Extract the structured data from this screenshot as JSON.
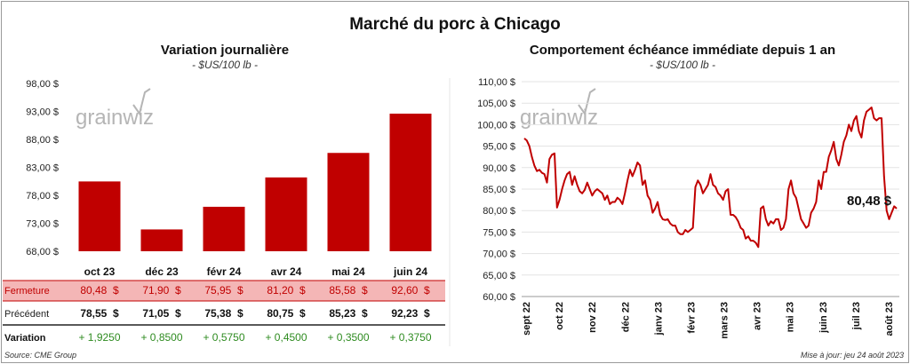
{
  "title": "Marché du porc à Chicago",
  "source": "Source: CME Group",
  "updated": "Mise à jour: jeu 24 août 2023",
  "watermark": "grainwiz",
  "colors": {
    "bar": "#c00000",
    "line": "#c00000",
    "fermeture_row": "#f4b6b6",
    "positive": "#2e8b20"
  },
  "chart_data": [
    {
      "type": "bar",
      "title": "Variation journalière",
      "unit": "- $US/100 lb -",
      "categories": [
        "oct 23",
        "déc 23",
        "févr 24",
        "avr 24",
        "mai 24",
        "juin 24"
      ],
      "values": [
        80.48,
        71.9,
        75.95,
        81.2,
        85.58,
        92.6
      ],
      "ylim": [
        68,
        98
      ],
      "yticks": [
        "98,00 $",
        "93,00 $",
        "88,00 $",
        "83,00 $",
        "78,00 $",
        "73,00 $",
        "68,00 $"
      ],
      "table": {
        "rows": [
          {
            "label": "Fermeture",
            "cells": [
              "80,48  $",
              "71,90  $",
              "75,95  $",
              "81,20  $",
              "85,58  $",
              "92,60  $"
            ]
          },
          {
            "label": "Précédent",
            "cells": [
              "78,55  $",
              "71,05  $",
              "75,38  $",
              "80,75  $",
              "85,23  $",
              "92,23  $"
            ]
          },
          {
            "label": "Variation",
            "cells": [
              "+ 1,9250",
              "+ 0,8500",
              "+ 0,5750",
              "+ 0,4500",
              "+ 0,3500",
              "+ 0,3750"
            ]
          }
        ]
      }
    },
    {
      "type": "line",
      "title": "Comportement  échéance immédiate depuis 1 an",
      "unit": "- $US/100 lb -",
      "ylim": [
        60,
        110
      ],
      "yticks": [
        "110,00 $",
        "105,00 $",
        "100,00 $",
        "95,00 $",
        "90,00 $",
        "85,00 $",
        "80,00 $",
        "75,00 $",
        "70,00 $",
        "65,00 $",
        "60,00 $"
      ],
      "xlabels": [
        "sept 22",
        "oct 22",
        "nov 22",
        "déc 22",
        "janv 23",
        "févr 23",
        "mars 23",
        "avr 23",
        "mai 23",
        "juin 23",
        "juil 23",
        "août 23"
      ],
      "last_label": "80,48 $",
      "values": [
        96.8,
        96.3,
        95.0,
        92.5,
        90.5,
        89.2,
        89.5,
        88.8,
        88.5,
        86.5,
        92.0,
        93.0,
        93.3,
        80.7,
        82.5,
        85.0,
        87.0,
        88.5,
        89.0,
        86.0,
        88.0,
        86.0,
        84.5,
        84.0,
        84.8,
        86.5,
        85.0,
        83.5,
        84.5,
        85.0,
        84.5,
        84.0,
        82.5,
        83.5,
        81.5,
        82.0,
        82.0,
        83.0,
        82.5,
        81.5,
        84.0,
        87.0,
        89.5,
        88.0,
        89.5,
        91.2,
        90.5,
        86.0,
        87.0,
        83.5,
        82.5,
        79.5,
        80.5,
        82.0,
        79.0,
        78.0,
        77.8,
        78.0,
        77.0,
        76.5,
        76.5,
        75.0,
        74.5,
        74.5,
        75.5,
        75.0,
        75.5,
        76.0,
        85.5,
        87.0,
        86.0,
        84.0,
        85.0,
        86.0,
        88.5,
        86.0,
        85.5,
        84.0,
        83.5,
        82.5,
        84.5,
        85.0,
        79.0,
        79.0,
        78.5,
        77.5,
        76.0,
        75.5,
        73.5,
        74.0,
        73.0,
        73.0,
        72.5,
        71.5,
        80.5,
        81.0,
        78.0,
        76.5,
        77.5,
        77.0,
        78.0,
        78.0,
        75.5,
        76.0,
        78.0,
        85.0,
        87.0,
        84.0,
        83.0,
        80.5,
        78.0,
        77.0,
        76.0,
        76.5,
        79.5,
        80.5,
        82.0,
        87.0,
        85.0,
        89.0,
        89.0,
        92.5,
        94.0,
        96.0,
        92.0,
        90.5,
        93.0,
        96.0,
        97.5,
        100.0,
        98.5,
        101.0,
        102.0,
        98.5,
        97.0,
        101.0,
        103.0,
        103.5,
        104.0,
        101.5,
        101.0,
        101.5,
        101.5,
        88.0,
        80.0,
        78.0,
        79.5,
        81.0,
        80.48
      ]
    }
  ]
}
